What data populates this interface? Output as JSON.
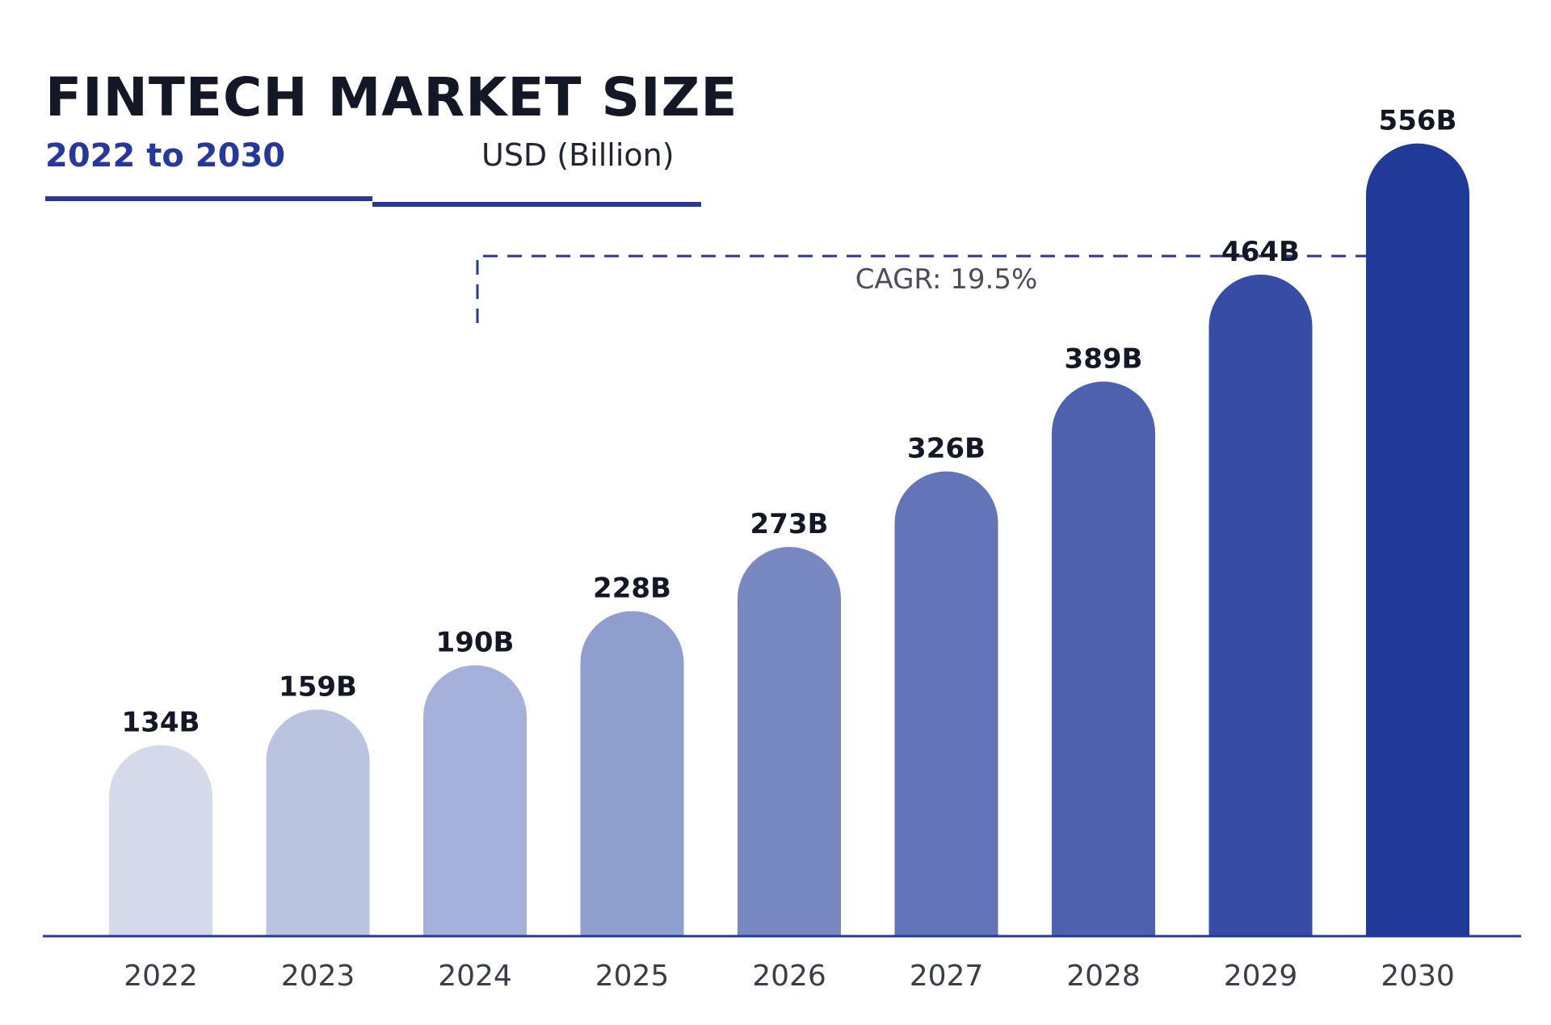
{
  "header": {
    "title": "FINTECH MARKET SIZE",
    "subtitle": "2022 to 2030",
    "unit": "USD (Billion)"
  },
  "annotation": {
    "cagr": "CAGR: 19.5%",
    "from_category": "2024",
    "to_category": "2030"
  },
  "colors": {
    "accent": "#26389a",
    "axis": "#26389a",
    "bars": [
      "#d4dae9",
      "#bac4e0",
      "#a5b1d8",
      "#8f9fcd",
      "#7889c2",
      "#6375b8",
      "#4e61af",
      "#364ca5",
      "#213a98"
    ]
  },
  "chart_data": {
    "type": "bar",
    "title": "FINTECH MARKET SIZE",
    "subtitle": "2022 to 2030",
    "ylabel": "USD (Billion)",
    "xlabel": "",
    "categories": [
      "2022",
      "2023",
      "2024",
      "2025",
      "2026",
      "2027",
      "2028",
      "2029",
      "2030"
    ],
    "values": [
      134,
      159,
      190,
      228,
      273,
      326,
      389,
      464,
      556
    ],
    "data_labels": [
      "134B",
      "159B",
      "190B",
      "228B",
      "273B",
      "326B",
      "389B",
      "464B",
      "556B"
    ],
    "ylim": [
      0,
      600
    ],
    "grid": false,
    "legend": "none"
  }
}
